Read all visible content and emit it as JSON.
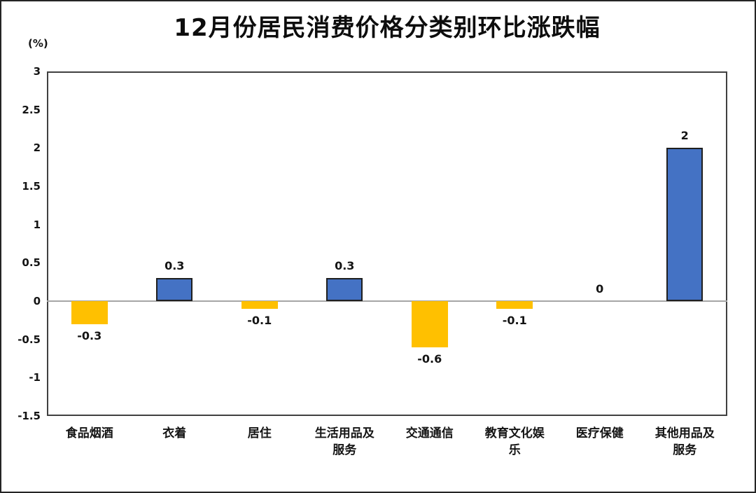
{
  "chart_data": {
    "type": "bar",
    "title": "12月份居民消费价格分类别环比涨跌幅",
    "unit_label": "(%)",
    "categories": [
      "食品烟酒",
      "衣着",
      "居住",
      "生活用品及服务",
      "交通通信",
      "教育文化娱乐",
      "医疗保健",
      "其他用品及服务"
    ],
    "values": [
      -0.3,
      0.3,
      -0.1,
      0.3,
      -0.6,
      -0.1,
      0,
      2
    ],
    "data_labels": [
      "-0.3",
      "0.3",
      "-0.1",
      "0.3",
      "-0.6",
      "-0.1",
      "0",
      "2"
    ],
    "ylim": [
      -1.5,
      3
    ],
    "yticks": [
      "3",
      "2.5",
      "2",
      "1.5",
      "1",
      "0.5",
      "0",
      "-0.5",
      "-1",
      "-1.5"
    ],
    "grid": false,
    "legend": "none",
    "xlabel": "",
    "ylabel": "",
    "positive_color": "#4472C4",
    "negative_color": "#FFC000",
    "bar_border_color": "#1F1F1F",
    "zero_line_color": "#A6A6A6"
  }
}
